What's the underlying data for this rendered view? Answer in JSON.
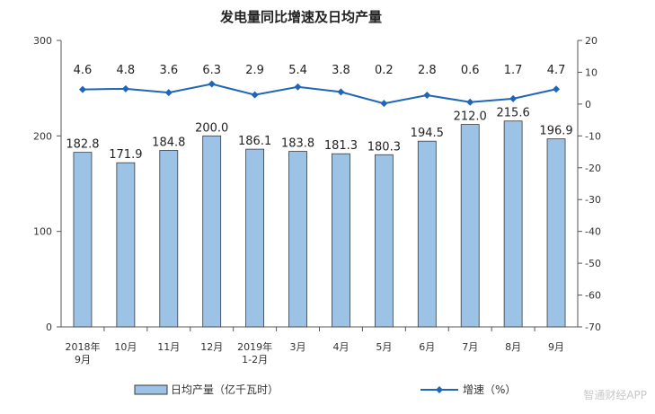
{
  "chart_data": {
    "type": "bar+line",
    "title": "发电量同比增速及日均产量",
    "categories": [
      [
        "2018年",
        "9月"
      ],
      [
        "10月"
      ],
      [
        "11月"
      ],
      [
        "12月"
      ],
      [
        "2019年",
        "1-2月"
      ],
      [
        "3月"
      ],
      [
        "4月"
      ],
      [
        "5月"
      ],
      [
        "6月"
      ],
      [
        "7月"
      ],
      [
        "8月"
      ],
      [
        "9月"
      ]
    ],
    "series": [
      {
        "name": "日均产量（亿千瓦时）",
        "type": "bar",
        "axis": "left",
        "values": [
          182.8,
          171.9,
          184.8,
          200.0,
          186.1,
          183.8,
          181.3,
          180.3,
          194.5,
          212.0,
          215.6,
          196.9
        ],
        "labels": [
          "182.8",
          "171.9",
          "184.8",
          "200.0",
          "186.1",
          "183.8",
          "181.3",
          "180.3",
          "194.5",
          "212.0",
          "215.6",
          "196.9"
        ],
        "color": "#9cc3e6",
        "stroke": "#3a3a3a"
      },
      {
        "name": "增速（%）",
        "type": "line",
        "axis": "right",
        "values": [
          4.6,
          4.8,
          3.6,
          6.3,
          2.9,
          5.4,
          3.8,
          0.2,
          2.8,
          0.6,
          1.7,
          4.7
        ],
        "labels": [
          "4.6",
          "4.8",
          "3.6",
          "6.3",
          "2.9",
          "5.4",
          "3.8",
          "0.2",
          "2.8",
          "0.6",
          "1.7",
          "4.7"
        ],
        "color": "#1f66b8"
      }
    ],
    "y_left": {
      "min": 0,
      "max": 300,
      "ticks": [
        "0",
        "100",
        "200",
        "300"
      ]
    },
    "y_right": {
      "min": -70,
      "max": 20,
      "ticks": [
        "20",
        "10",
        "0",
        "-10",
        "-20",
        "-30",
        "-40",
        "-50",
        "-60",
        "-70"
      ]
    },
    "legend_position": "bottom",
    "grid": false
  },
  "watermark": "智通财经APP"
}
